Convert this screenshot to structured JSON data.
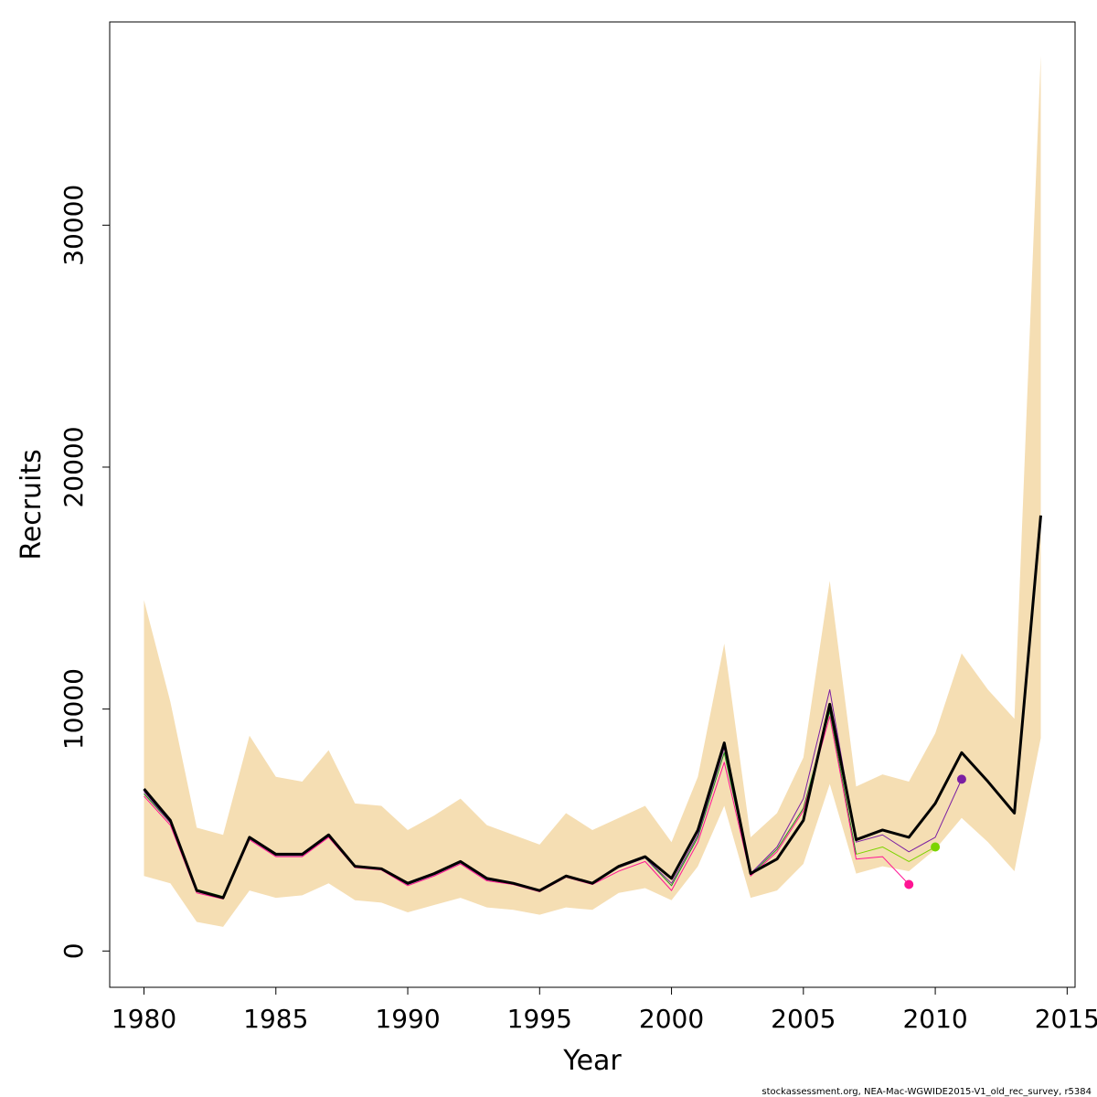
{
  "chart_data": {
    "type": "line",
    "xlabel": "Year",
    "ylabel": "Recruits",
    "xlim": [
      1978.7,
      2015.3
    ],
    "ylim": [
      -1500,
      38400
    ],
    "x_ticks": [
      1980,
      1985,
      1990,
      1995,
      2000,
      2005,
      2010,
      2015
    ],
    "y_ticks": [
      0,
      10000,
      20000,
      30000
    ],
    "grid": false,
    "credit": "stockassessment.org, NEA-Mac-WGWIDE2015-V1_old_rec_survey, r5384",
    "band": {
      "color": "#f5deb3",
      "x": [
        1980,
        1981,
        1982,
        1983,
        1984,
        1985,
        1986,
        1987,
        1988,
        1989,
        1990,
        1991,
        1992,
        1993,
        1994,
        1995,
        1996,
        1997,
        1998,
        1999,
        2000,
        2001,
        2002,
        2003,
        2004,
        2005,
        2006,
        2007,
        2008,
        2009,
        2010,
        2011,
        2012,
        2013,
        2014
      ],
      "upper": [
        14500,
        10300,
        5100,
        4800,
        8900,
        7200,
        7000,
        8300,
        6100,
        6000,
        5000,
        5600,
        6300,
        5200,
        4800,
        4400,
        5700,
        5000,
        5500,
        6000,
        4500,
        7200,
        12700,
        4700,
        5700,
        8000,
        15300,
        6800,
        7300,
        7000,
        9000,
        12300,
        10800,
        9600,
        37000
      ],
      "lower": [
        3100,
        2800,
        1200,
        1000,
        2500,
        2200,
        2300,
        2800,
        2100,
        2000,
        1600,
        1900,
        2200,
        1800,
        1700,
        1500,
        1800,
        1700,
        2400,
        2600,
        2100,
        3500,
        6000,
        2200,
        2500,
        3600,
        6900,
        3200,
        3500,
        3300,
        4200,
        5500,
        4500,
        3300,
        8800
      ]
    },
    "series": [
      {
        "color": "#000000",
        "width": 3,
        "x": [
          1980,
          1981,
          1982,
          1983,
          1984,
          1985,
          1986,
          1987,
          1988,
          1989,
          1990,
          1991,
          1992,
          1993,
          1994,
          1995,
          1996,
          1997,
          1998,
          1999,
          2000,
          2001,
          2002,
          2003,
          2004,
          2005,
          2006,
          2007,
          2008,
          2009,
          2010,
          2011,
          2012,
          2013,
          2014
        ],
        "values": [
          6700,
          5400,
          2500,
          2200,
          4700,
          4000,
          4000,
          4800,
          3500,
          3400,
          2800,
          3200,
          3700,
          3000,
          2800,
          2500,
          3100,
          2800,
          3500,
          3900,
          3000,
          5000,
          8600,
          3200,
          3800,
          5400,
          10200,
          4600,
          5000,
          4700,
          6100,
          8200,
          7000,
          5700,
          18000
        ]
      },
      {
        "color": "#1e8c1e",
        "width": 1,
        "x": [
          1980,
          1981,
          1982,
          1983,
          1984,
          1985,
          1986,
          1987,
          1988,
          1989,
          1990,
          1991,
          1992,
          1993,
          1994,
          1995,
          1996,
          1997,
          1998,
          1999,
          2000,
          2001,
          2002,
          2003,
          2004,
          2005,
          2006,
          2007
        ],
        "values": [
          6500,
          5300,
          2550,
          2250,
          4650,
          3950,
          3950,
          4750,
          3500,
          3400,
          2750,
          3150,
          3650,
          2950,
          2750,
          2500,
          3100,
          2800,
          3450,
          3850,
          2700,
          4700,
          8200,
          3150,
          4200,
          5900,
          9900,
          4000
        ]
      },
      {
        "color": "#ff1493",
        "width": 1,
        "marker": true,
        "x": [
          1980,
          1981,
          1982,
          1983,
          1984,
          1985,
          1986,
          1987,
          1988,
          1989,
          1990,
          1991,
          1992,
          1993,
          1994,
          1995,
          1996,
          1997,
          1998,
          1999,
          2000,
          2001,
          2002,
          2003,
          2004,
          2005,
          2006,
          2007,
          2008,
          2009
        ],
        "values": [
          6400,
          5200,
          2400,
          2150,
          4600,
          3900,
          3900,
          4700,
          3450,
          3350,
          2700,
          3100,
          3600,
          2900,
          2750,
          2450,
          3050,
          2750,
          3300,
          3700,
          2500,
          4500,
          7800,
          3100,
          4100,
          5800,
          9700,
          3800,
          3900,
          2750
        ]
      },
      {
        "color": "#7cd400",
        "width": 1,
        "marker": true,
        "x": [
          2007,
          2008,
          2009,
          2010
        ],
        "values": [
          4000,
          4300,
          3700,
          4300
        ]
      },
      {
        "color": "#7b1fa2",
        "width": 1,
        "marker": true,
        "x": [
          1980,
          1981,
          1982,
          1983,
          1984,
          1985,
          1986,
          1987,
          1988,
          1989,
          1990,
          1991,
          1992,
          1993,
          1994,
          1995,
          1996,
          1997,
          1998,
          1999,
          2000,
          2001,
          2002,
          2003,
          2004,
          2005,
          2006,
          2007,
          2008,
          2009,
          2010,
          2011
        ],
        "values": [
          6600,
          5300,
          2500,
          2200,
          4650,
          3950,
          3950,
          4750,
          3500,
          3400,
          2750,
          3150,
          3650,
          2950,
          2800,
          2500,
          3100,
          2800,
          3450,
          3850,
          2800,
          4800,
          8400,
          3200,
          4300,
          6300,
          10800,
          4500,
          4800,
          4100,
          4700,
          7100
        ]
      }
    ]
  }
}
